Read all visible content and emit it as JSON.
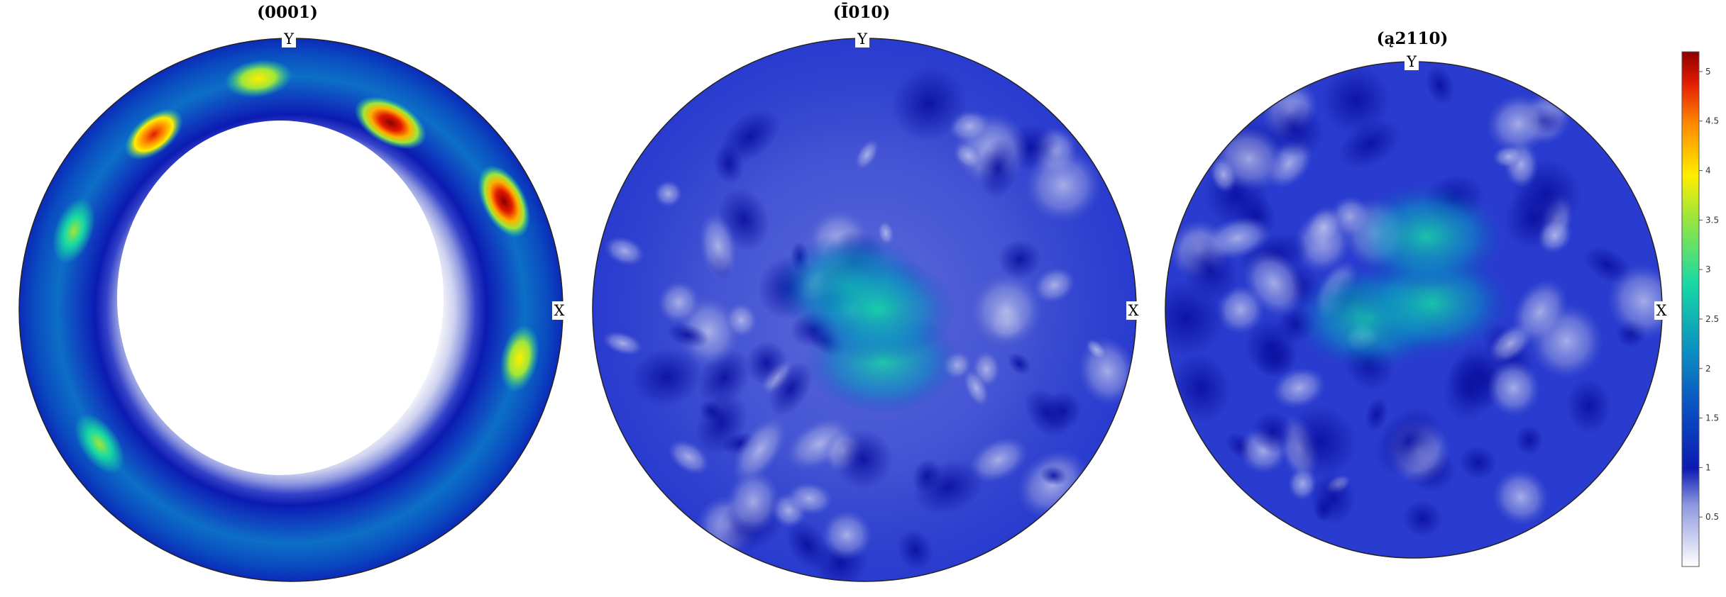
{
  "chart_data": [
    {
      "type": "heatmap",
      "title": "(0001)",
      "axis_labels": [
        "Y",
        "X"
      ],
      "peaks": [
        {
          "r": 0.78,
          "ang": 62,
          "value": 5.2
        },
        {
          "r": 0.88,
          "ang": 27,
          "value": 4.8
        },
        {
          "r": 0.82,
          "ang": 128,
          "value": 3.8
        },
        {
          "r": 0.86,
          "ang": 98,
          "value": 3.2
        },
        {
          "r": 0.85,
          "ang": 160,
          "value": 3.0
        },
        {
          "r": 0.86,
          "ang": 215,
          "value": 2.8
        },
        {
          "r": 0.86,
          "ang": -12,
          "value": 3.2
        }
      ],
      "pattern": "ring of high density around a low-density center"
    },
    {
      "type": "heatmap",
      "title": "(Ī010)",
      "axis_labels": [
        "Y",
        "X"
      ],
      "peaks": [
        {
          "r": 0.1,
          "ang": 120,
          "value": 2.4
        },
        {
          "r": 0.2,
          "ang": -70,
          "value": 2.2
        },
        {
          "r": 0.05,
          "ang": 0,
          "value": 2.1
        }
      ],
      "pattern": "mostly 0.5-1.5 with a central region near 2"
    },
    {
      "type": "heatmap",
      "title": "(ą2110)",
      "axis_labels": [
        "Y",
        "X"
      ],
      "peaks": [
        {
          "r": 0.18,
          "ang": 190,
          "value": 2.8
        },
        {
          "r": 0.08,
          "ang": 20,
          "value": 2.2
        },
        {
          "r": 0.3,
          "ang": 80,
          "value": 2.2
        }
      ],
      "pattern": "mostly 0.5-1.5 with a central region near 2-2.8"
    }
  ],
  "colorbar": {
    "min": 0,
    "max": 5.2,
    "ticks": [
      "0.5",
      "1",
      "1.5",
      "2",
      "2.5",
      "3",
      "3.5",
      "4",
      "4.5",
      "5"
    ],
    "colormap": "white-blue-cyan-green-yellow-red"
  },
  "colors": {
    "outline": "#222222",
    "low": "#ffffff",
    "blue": "#0b1ab0",
    "mid": "#17d9a4",
    "high": "#b00000"
  }
}
